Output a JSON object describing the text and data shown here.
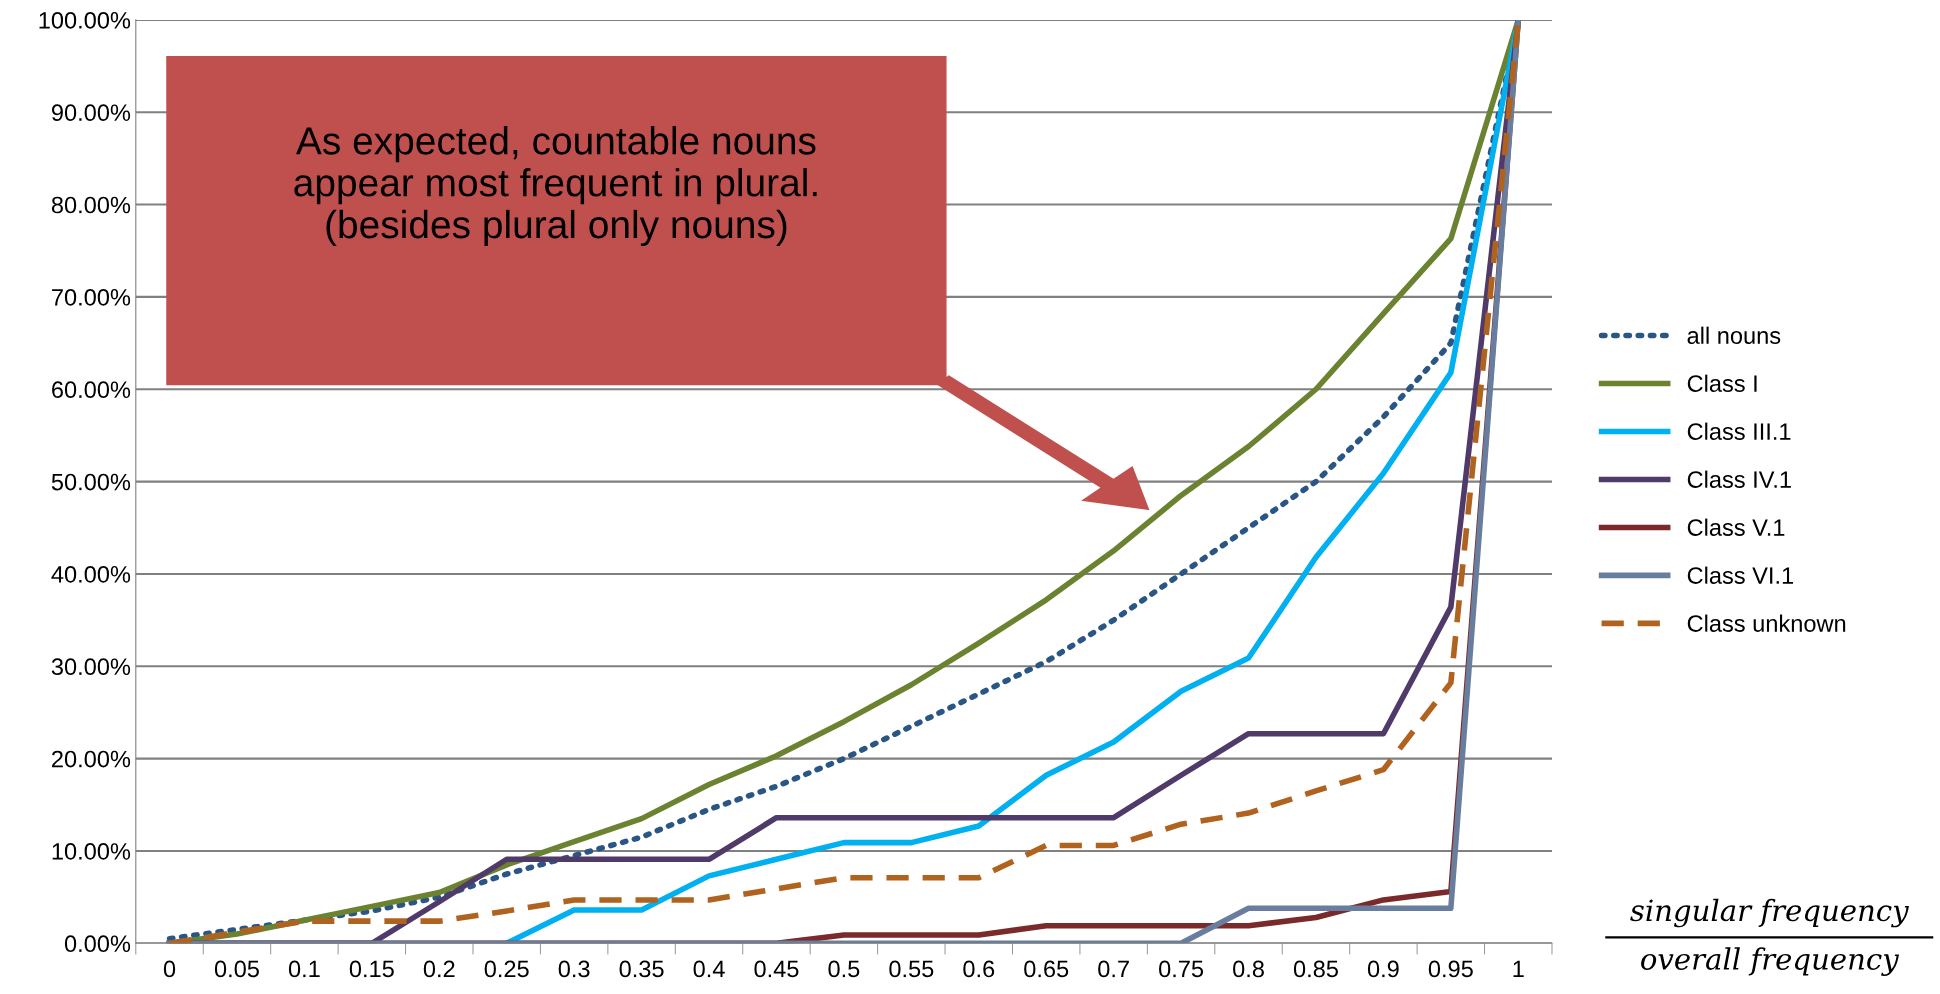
{
  "chart_data": {
    "type": "line",
    "categories": [
      "0",
      "0.05",
      "0.1",
      "0.15",
      "0.2",
      "0.25",
      "0.3",
      "0.35",
      "0.4",
      "0.45",
      "0.5",
      "0.55",
      "0.6",
      "0.65",
      "0.7",
      "0.75",
      "0.8",
      "0.85",
      "0.9",
      "0.95",
      "1"
    ],
    "xlabel": "singular frequency\noverall frequency",
    "ylim": [
      0,
      100
    ],
    "yticks": [
      {
        "value": 0,
        "label": "0.00%"
      },
      {
        "value": 10,
        "label": "10.00%"
      },
      {
        "value": 20,
        "label": "20.00%"
      },
      {
        "value": 30,
        "label": "30.00%"
      },
      {
        "value": 40,
        "label": "40.00%"
      },
      {
        "value": 50,
        "label": "50.00%"
      },
      {
        "value": 60,
        "label": "60.00%"
      },
      {
        "value": 70,
        "label": "70.00%"
      },
      {
        "value": 80,
        "label": "80.00%"
      },
      {
        "value": 90,
        "label": "90.00%"
      },
      {
        "value": 100,
        "label": "100.00%"
      }
    ],
    "grid": "y",
    "legend": "right",
    "marker": "none",
    "annotations": [
      "As expected, countable nouns\nappear most frequent in plural.\n(besides plural only nouns)"
    ],
    "series": [
      {
        "name": "all nouns",
        "color": "#2a5685",
        "line_style": "dotted",
        "values": [
          0.5,
          1.5,
          2.5,
          3.5,
          5,
          7.5,
          9.5,
          11.5,
          14.5,
          17,
          20,
          23.5,
          27,
          30.5,
          35,
          40,
          45,
          50,
          57,
          65,
          100
        ]
      },
      {
        "name": "Class I",
        "color": "#6b8331",
        "values": [
          0,
          1,
          2.5,
          4,
          5.5,
          8.5,
          11,
          13.5,
          17.2,
          20.3,
          24,
          28,
          32.5,
          37.2,
          42.5,
          48.5,
          53.8,
          60,
          68.2,
          76.3,
          100
        ]
      },
      {
        "name": "Class III.1",
        "color": "#00b0f0",
        "values": [
          null,
          null,
          null,
          null,
          null,
          0,
          3.6,
          3.6,
          7.3,
          9.1,
          10.9,
          10.9,
          12.7,
          18.2,
          21.8,
          27.3,
          30.9,
          41.8,
          50.9,
          61.8,
          100
        ]
      },
      {
        "name": "Class IV.1",
        "color": "#4f3a69",
        "values": [
          0,
          0,
          0,
          0,
          4.5,
          9.1,
          9.1,
          9.1,
          9.1,
          13.6,
          13.6,
          13.6,
          13.6,
          13.6,
          13.6,
          18.2,
          22.7,
          22.7,
          22.7,
          36.4,
          100
        ]
      },
      {
        "name": "Class V.1",
        "color": "#7a2a2a",
        "values": [
          0,
          0,
          0,
          0,
          0,
          0,
          0,
          0,
          0,
          0,
          0.9,
          0.9,
          0.9,
          1.9,
          1.9,
          1.9,
          1.9,
          2.8,
          4.7,
          5.6,
          100
        ]
      },
      {
        "name": "Class VI.1",
        "color": "#697d9e",
        "values": [
          0,
          0,
          0,
          0,
          0,
          0,
          0,
          0,
          0,
          0,
          0,
          0,
          0,
          0,
          0,
          0,
          3.8,
          3.8,
          3.8,
          3.8,
          100
        ]
      },
      {
        "name": "Class unknown",
        "color": "#b0631f",
        "line_style": "dashed",
        "values": [
          0,
          1.2,
          2.4,
          2.4,
          2.4,
          3.5,
          4.7,
          4.7,
          4.7,
          5.9,
          7.1,
          7.1,
          7.1,
          10.6,
          10.6,
          12.9,
          14.1,
          16.5,
          18.8,
          28.2,
          100
        ]
      }
    ]
  }
}
